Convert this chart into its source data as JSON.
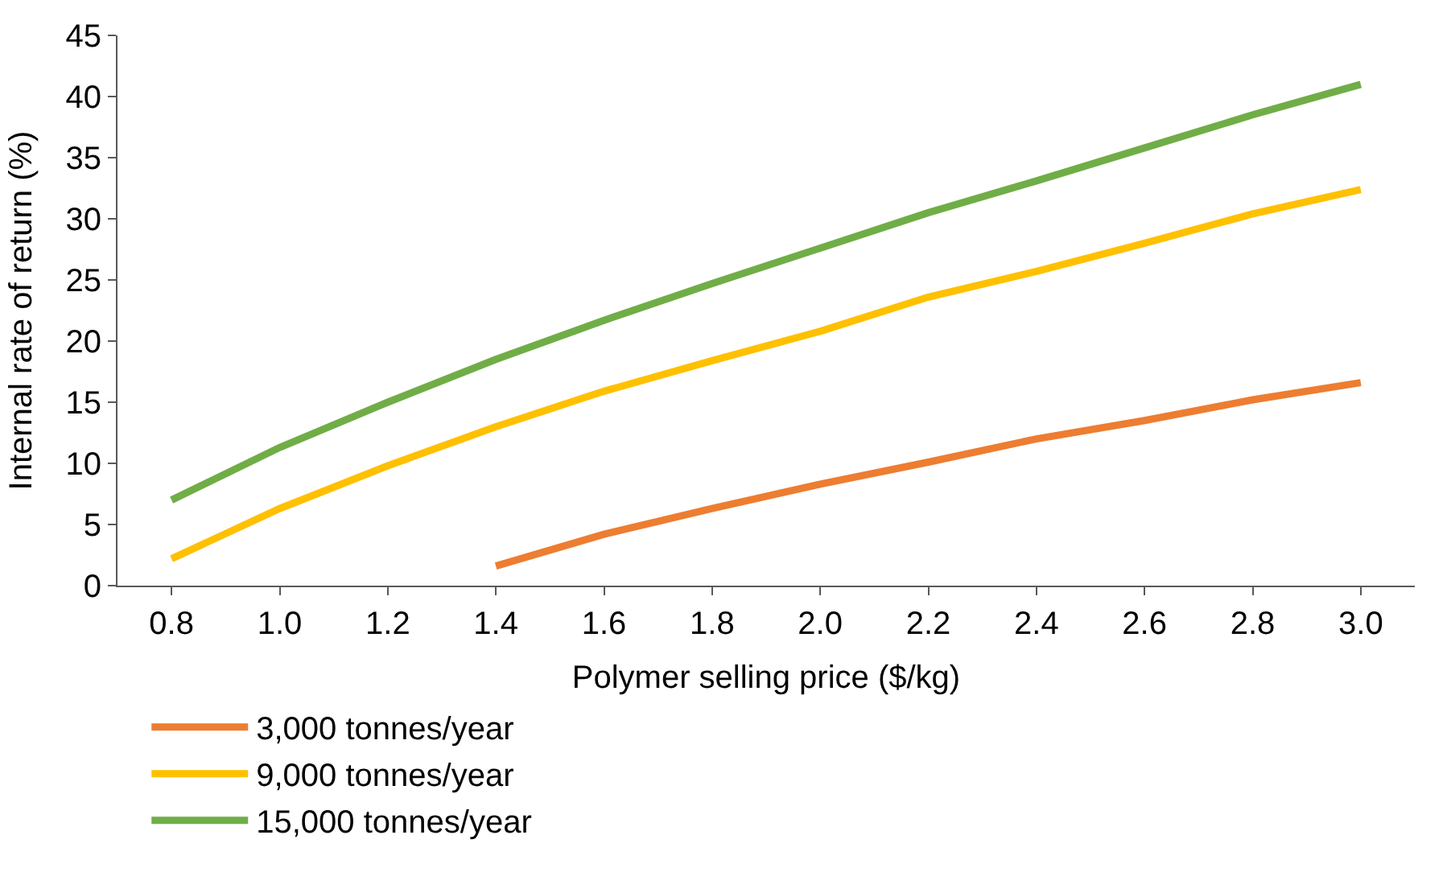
{
  "chart_data": {
    "type": "line",
    "xlabel": "Polymer selling price ($/kg)",
    "ylabel": "Internal rate of return (%)",
    "x": [
      0.8,
      1.0,
      1.2,
      1.4,
      1.6,
      1.8,
      2.0,
      2.2,
      2.4,
      2.6,
      2.8,
      3.0
    ],
    "series": [
      {
        "name": "3,000 tonnes/year",
        "color": "#ed7d31",
        "values": [
          null,
          null,
          null,
          1.6,
          4.2,
          6.3,
          8.3,
          10.1,
          12,
          13.5,
          15.2,
          16.6
        ]
      },
      {
        "name": "9,000 tonnes/year",
        "color": "#ffc000",
        "values": [
          2.2,
          6.3,
          9.8,
          13,
          15.9,
          18.4,
          20.8,
          23.6,
          25.7,
          28,
          30.4,
          32.4
        ]
      },
      {
        "name": "15,000 tonnes/year",
        "color": "#70ad47",
        "values": [
          7,
          11.3,
          15,
          18.5,
          21.7,
          24.7,
          27.6,
          30.5,
          33.1,
          35.8,
          38.5,
          41
        ]
      }
    ],
    "xlim": [
      0.7,
      3.1
    ],
    "xticks": [
      0.8,
      {
        "value": 1.0,
        "label": "1.0"
      },
      1.2,
      1.4,
      1.6,
      1.8,
      {
        "value": 2.0,
        "label": "2.0"
      },
      2.2,
      2.4,
      2.6,
      2.8,
      {
        "value": 3.0,
        "label": "3.0"
      }
    ],
    "ylim": [
      0,
      45
    ],
    "yticks": [
      0,
      5,
      10,
      15,
      20,
      25,
      30,
      35,
      40,
      45
    ],
    "legend": "bottom",
    "marker": "none",
    "line_style": "solid"
  }
}
